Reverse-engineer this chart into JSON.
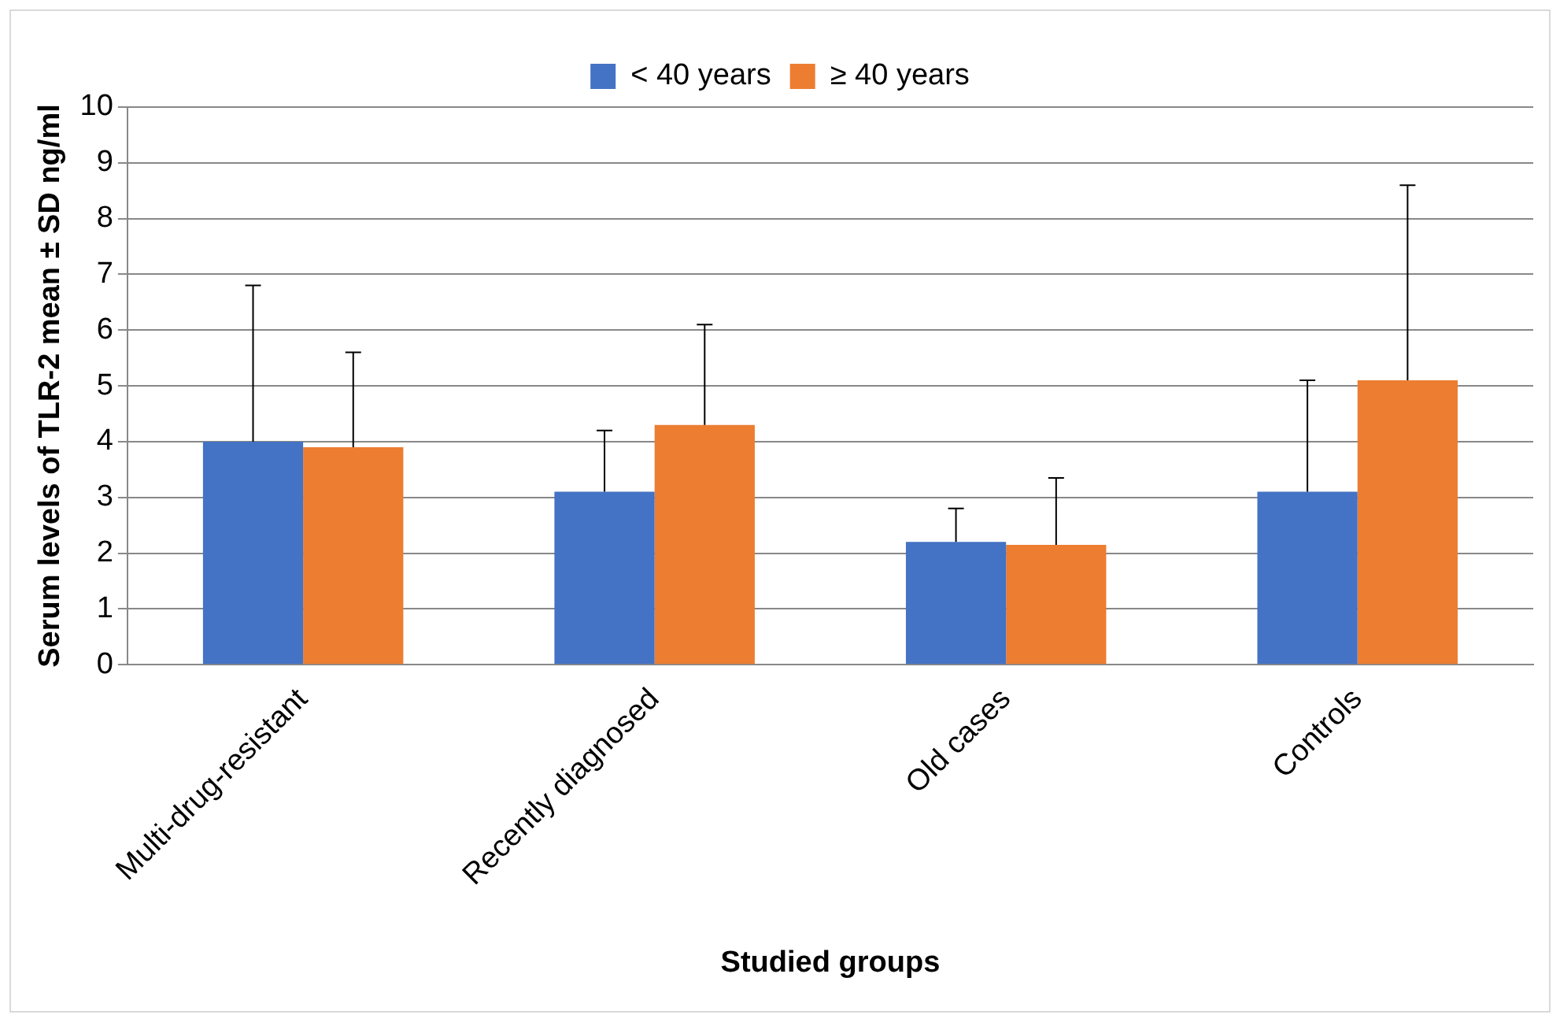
{
  "chart_data": {
    "type": "bar",
    "xlabel": "Studied groups",
    "ylabel": "Serum levels of TLR-2 mean ± SD ng/ml",
    "categories": [
      "Multi-drug-resistant",
      "Recently diagnosed",
      "Old cases",
      "Controls"
    ],
    "series": [
      {
        "name": "< 40 years",
        "color": "#4472c4",
        "values": [
          4.0,
          3.1,
          2.2,
          3.1
        ],
        "errors": [
          [
            4.0,
            6.8
          ],
          [
            3.1,
            4.2
          ],
          [
            2.2,
            2.8
          ],
          [
            3.1,
            5.1
          ]
        ]
      },
      {
        "name": "≥ 40 years",
        "color": "#ed7d31",
        "values": [
          3.9,
          4.3,
          2.15,
          5.1
        ],
        "errors": [
          [
            3.9,
            5.6
          ],
          [
            4.3,
            6.1
          ],
          [
            2.15,
            3.35
          ],
          [
            5.1,
            8.6
          ]
        ]
      }
    ],
    "ylim": [
      0,
      10
    ],
    "yticks": [
      0,
      1,
      2,
      3,
      4,
      5,
      6,
      7,
      8,
      9,
      10
    ],
    "grid": "y",
    "legend": "top"
  }
}
